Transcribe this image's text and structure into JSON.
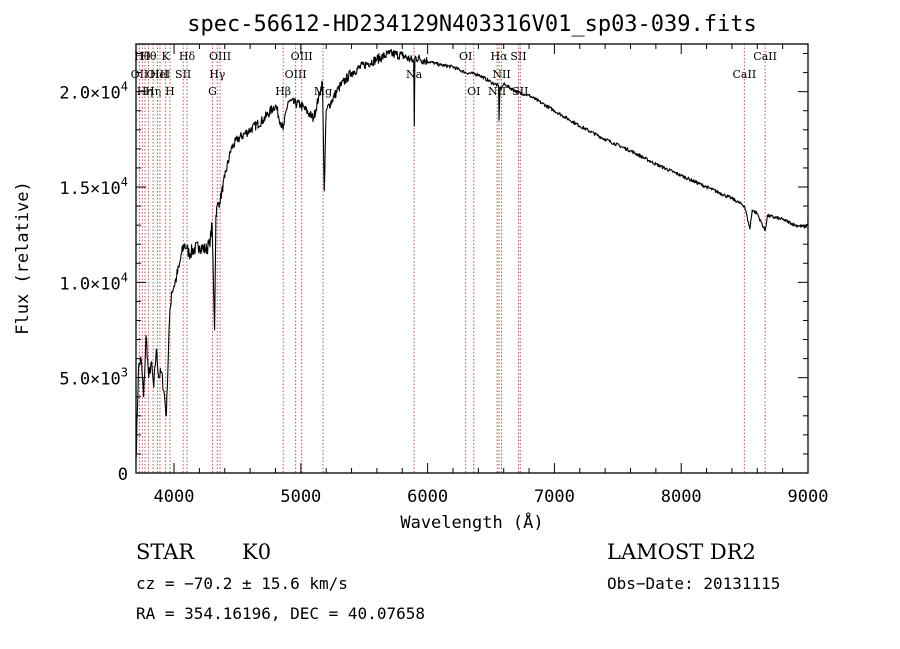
{
  "chart_data": {
    "type": "line",
    "title": "spec-56612-HD234129N403316V01_sp03-039.fits",
    "xlabel": "Wavelength (Å)",
    "ylabel": "Flux (relative)",
    "xlim": [
      3700,
      9000
    ],
    "ylim": [
      0,
      22500
    ],
    "x_ticks": [
      4000,
      5000,
      6000,
      7000,
      8000,
      9000
    ],
    "x_tick_labels": [
      "4000",
      "5000",
      "6000",
      "7000",
      "8000",
      "9000"
    ],
    "y_ticks": [
      0,
      5000,
      10000,
      15000,
      20000
    ],
    "y_tick_labels": [
      {
        "mantissa": "0",
        "exp": ""
      },
      {
        "mantissa": "5.0×10",
        "exp": "3"
      },
      {
        "mantissa": "1.0×10",
        "exp": "4"
      },
      {
        "mantissa": "1.5×10",
        "exp": "4"
      },
      {
        "mantissa": "2.0×10",
        "exp": "4"
      }
    ],
    "grid": false,
    "series": [
      {
        "x": [
          3700,
          3720,
          3740,
          3760,
          3780,
          3800,
          3820,
          3840,
          3860,
          3880,
          3900,
          3920,
          3940,
          3960,
          3980,
          4000,
          4020,
          4040,
          4060,
          4080,
          4100,
          4120,
          4150,
          4200,
          4250,
          4280,
          4300,
          4320,
          4330,
          4340,
          4360,
          4400,
          4450,
          4500,
          4600,
          4700,
          4800,
          4860,
          4900,
          5000,
          5100,
          5170,
          5185,
          5200,
          5300,
          5400,
          5500,
          5600,
          5700,
          5800,
          5890,
          5895,
          5900,
          6000,
          6100,
          6200,
          6300,
          6400,
          6500,
          6560,
          6563,
          6570,
          6600,
          6700,
          6800,
          6900,
          7000,
          7200,
          7400,
          7600,
          7800,
          8000,
          8200,
          8400,
          8500,
          8542,
          8560,
          8600,
          8662,
          8680,
          8800,
          8900,
          8980,
          9000
        ],
        "y": [
          700,
          5500,
          6000,
          4000,
          7200,
          5000,
          5800,
          4500,
          6500,
          5000,
          5300,
          4300,
          3000,
          7500,
          9500,
          9800,
          10300,
          10800,
          11500,
          12000,
          11800,
          11500,
          11700,
          11900,
          11700,
          12000,
          13000,
          7500,
          13500,
          14000,
          14200,
          15500,
          17000,
          17500,
          18000,
          18500,
          19300,
          18000,
          19500,
          19300,
          18600,
          20500,
          14800,
          19000,
          20200,
          21000,
          21400,
          21700,
          22000,
          21900,
          21600,
          18200,
          21800,
          21600,
          21400,
          21300,
          21000,
          20900,
          20500,
          20300,
          18500,
          20100,
          20400,
          20000,
          19800,
          19400,
          19000,
          18200,
          17500,
          16900,
          16200,
          15600,
          15000,
          14400,
          14000,
          12800,
          13800,
          13600,
          12700,
          13500,
          13300,
          13000,
          12900,
          13100
        ]
      }
    ],
    "line_markers": [
      {
        "wl": 3727,
        "label": "OII",
        "row": 1
      },
      {
        "wl": 3750,
        "label": "Hθ",
        "row": 0
      },
      {
        "wl": 3771,
        "label": "Hη",
        "row": 2
      },
      {
        "wl": 3798,
        "label": "Hθ",
        "row": 0
      },
      {
        "wl": 3835,
        "label": "Hη",
        "row": 2
      },
      {
        "wl": 3869,
        "label": "OIII",
        "row": 1
      },
      {
        "wl": 3889,
        "label": "HeI",
        "row": 1
      },
      {
        "wl": 3934,
        "label": "K",
        "row": 0
      },
      {
        "wl": 3968,
        "label": "H",
        "row": 2
      },
      {
        "wl": 4072,
        "label": "SII",
        "row": 1
      },
      {
        "wl": 4102,
        "label": "Hδ",
        "row": 0
      },
      {
        "wl": 4304,
        "label": "G",
        "row": 2
      },
      {
        "wl": 4341,
        "label": "Hγ",
        "row": 1
      },
      {
        "wl": 4363,
        "label": "OIII",
        "row": 0
      },
      {
        "wl": 4861,
        "label": "Hβ",
        "row": 2
      },
      {
        "wl": 4959,
        "label": "OIII",
        "row": 1
      },
      {
        "wl": 5007,
        "label": "OIII",
        "row": 0
      },
      {
        "wl": 5175,
        "label": "Mg",
        "row": 2
      },
      {
        "wl": 5893,
        "label": "Na",
        "row": 1
      },
      {
        "wl": 6300,
        "label": "OI",
        "row": 0
      },
      {
        "wl": 6364,
        "label": "OI",
        "row": 2
      },
      {
        "wl": 6548,
        "label": "NII",
        "row": 2
      },
      {
        "wl": 6563,
        "label": "Hα",
        "row": 0
      },
      {
        "wl": 6583,
        "label": "NII",
        "row": 1
      },
      {
        "wl": 6717,
        "label": "SII",
        "row": 0
      },
      {
        "wl": 6731,
        "label": "SII",
        "row": 2
      },
      {
        "wl": 8498,
        "label": "CaII",
        "row": 1
      },
      {
        "wl": 8662,
        "label": "CaII",
        "row": 0
      }
    ]
  },
  "info": {
    "class_label": "STAR",
    "subclass": "K0",
    "survey": "LAMOST DR2",
    "redshift": "cz = −70.2 ± 15.6 km/s",
    "obs_date": "Obs−Date: 20131115",
    "coords": "RA = 354.16196, DEC =  40.07658"
  },
  "colors": {
    "spectrum": "#000000",
    "marker_lines": "#c0504d"
  }
}
